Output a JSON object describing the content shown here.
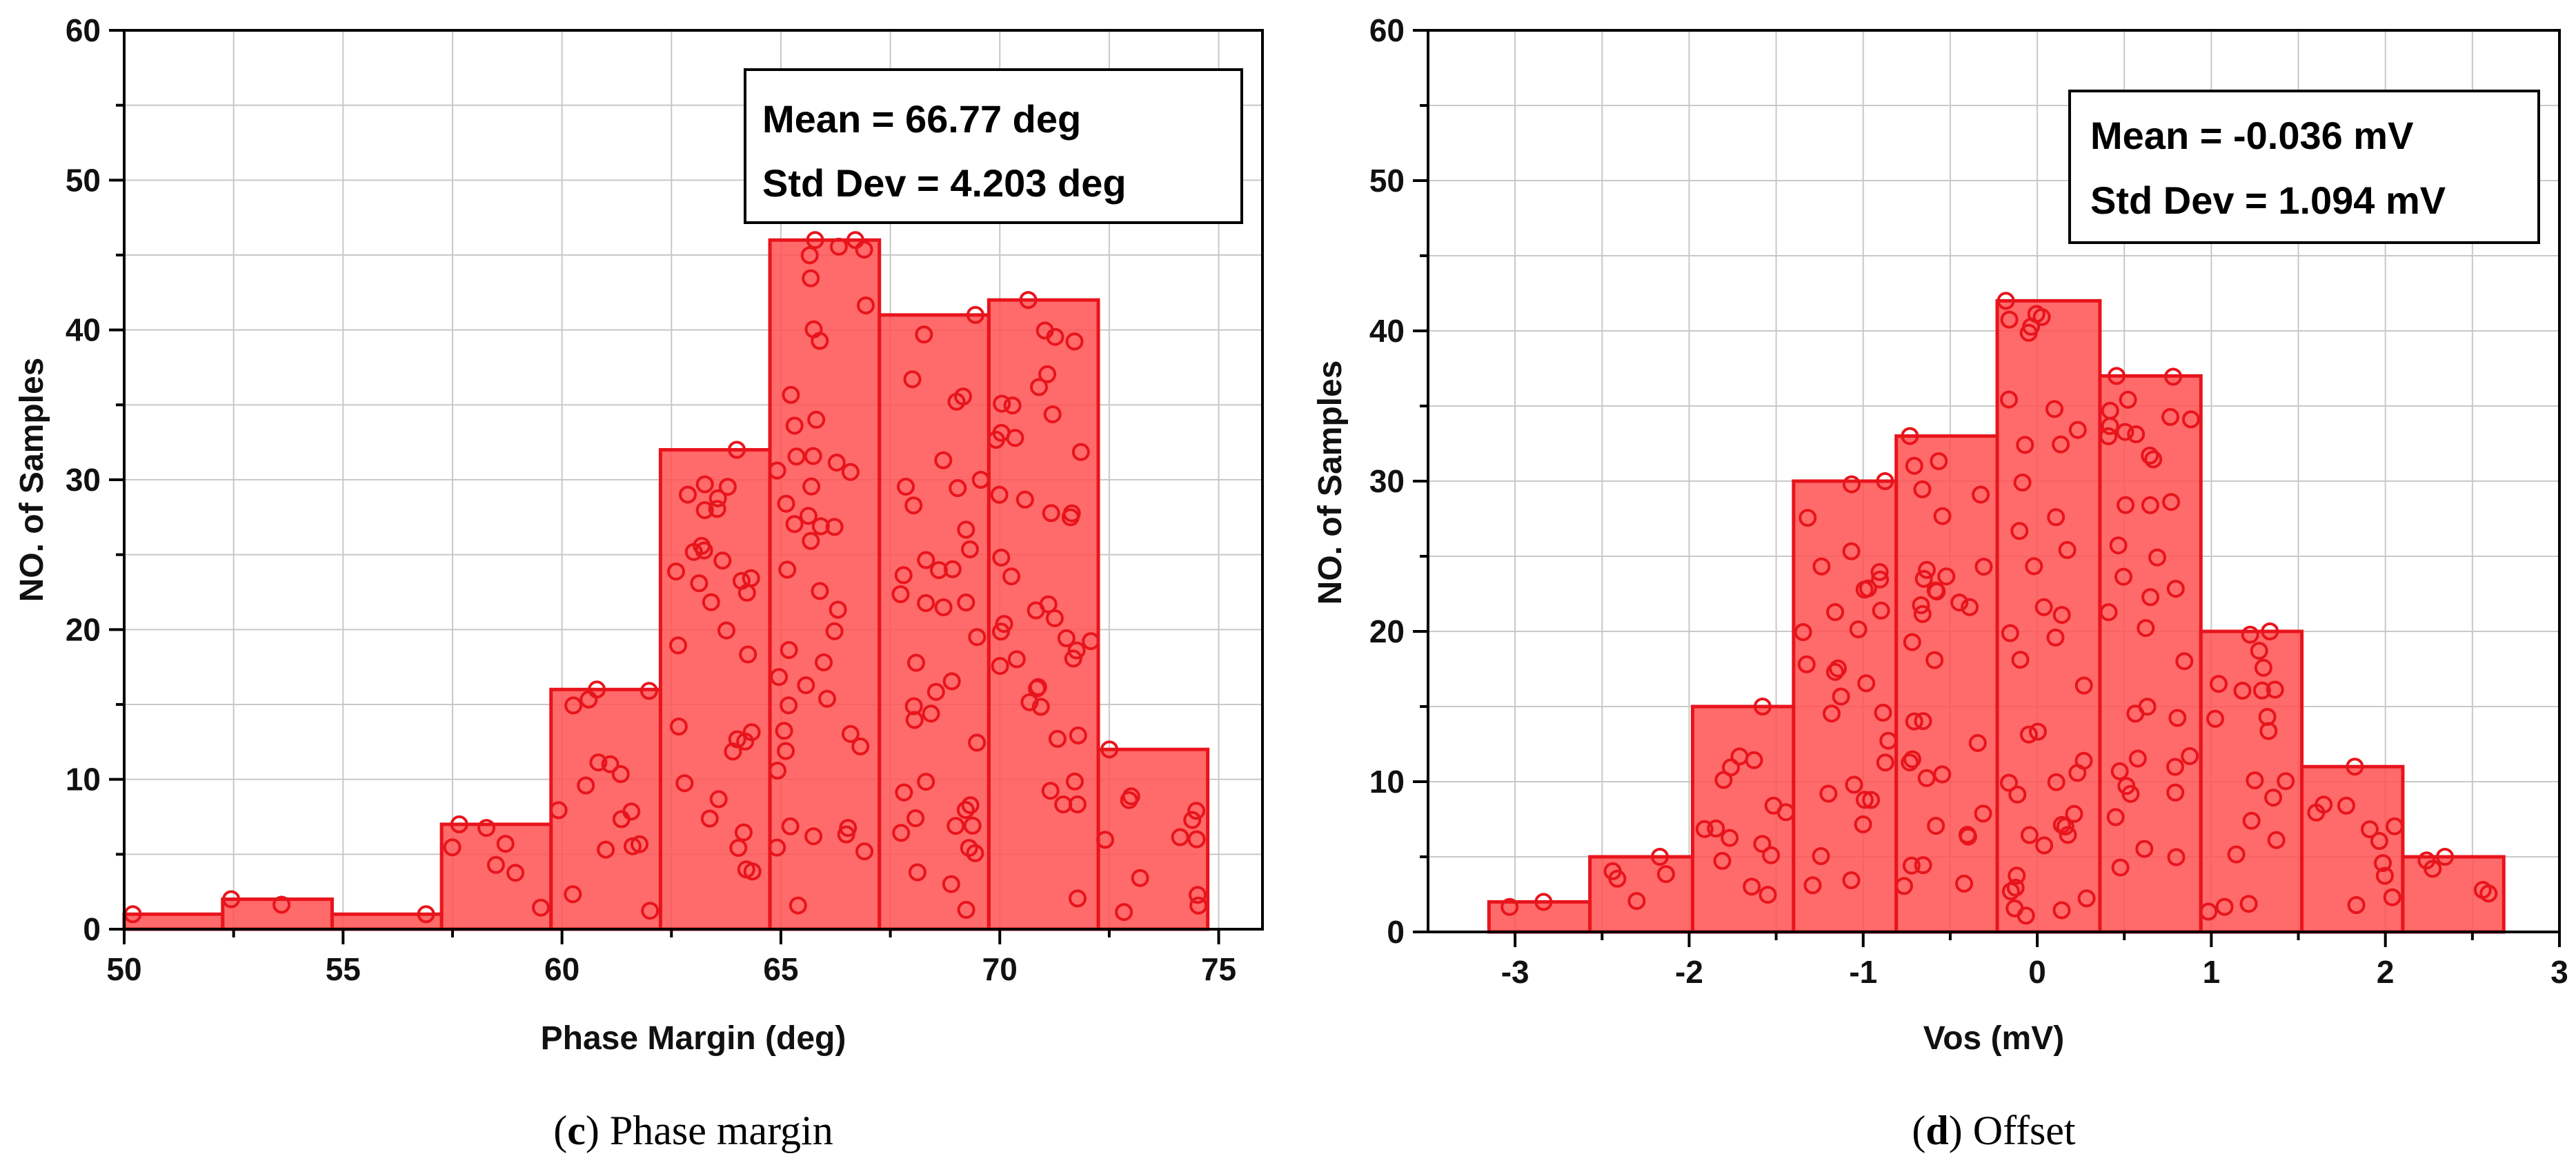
{
  "chart_data": [
    {
      "type": "bar",
      "id": "phase",
      "title": "",
      "xlabel": "Phase Margin (deg)",
      "ylabel": "NO. of Samples",
      "xlim": [
        50,
        76
      ],
      "ylim": [
        0,
        60
      ],
      "xticks": [
        50,
        55,
        60,
        65,
        70,
        75
      ],
      "yticks": [
        0,
        10,
        20,
        30,
        40,
        50,
        60
      ],
      "grid": true,
      "bin_edges": [
        50,
        52.25,
        54.75,
        57.25,
        59.75,
        62.25,
        64.75,
        67.25,
        69.75,
        72.25,
        74.75
      ],
      "values": [
        1,
        2,
        1,
        7,
        16,
        32,
        46,
        41,
        42,
        12
      ],
      "stats": {
        "line1": "Mean = 66.77 deg",
        "line2": "Std Dev = 4.203 deg"
      },
      "caption": {
        "letter": "c",
        "text": "Phase margin"
      }
    },
    {
      "type": "bar",
      "id": "offset",
      "title": "",
      "xlabel": "Vos (mV)",
      "ylabel": "NO. of Samples",
      "xlim": [
        -3.5,
        3
      ],
      "ylim": [
        0,
        60
      ],
      "xticks": [
        -3,
        -2,
        -1,
        0,
        1,
        2,
        3
      ],
      "yticks": [
        0,
        10,
        20,
        30,
        40,
        50,
        60
      ],
      "grid": true,
      "bin_edges": [
        -3.15,
        -2.57,
        -1.98,
        -1.4,
        -0.81,
        -0.23,
        0.36,
        0.94,
        1.52,
        2.1,
        2.68
      ],
      "values": [
        2,
        5,
        15,
        30,
        33,
        42,
        37,
        20,
        11,
        5
      ],
      "stats": {
        "line1": "Mean = -0.036 mV",
        "line2": "Std  Dev = 1.094 mV"
      },
      "caption": {
        "letter": "d",
        "text": "Offset"
      }
    }
  ]
}
